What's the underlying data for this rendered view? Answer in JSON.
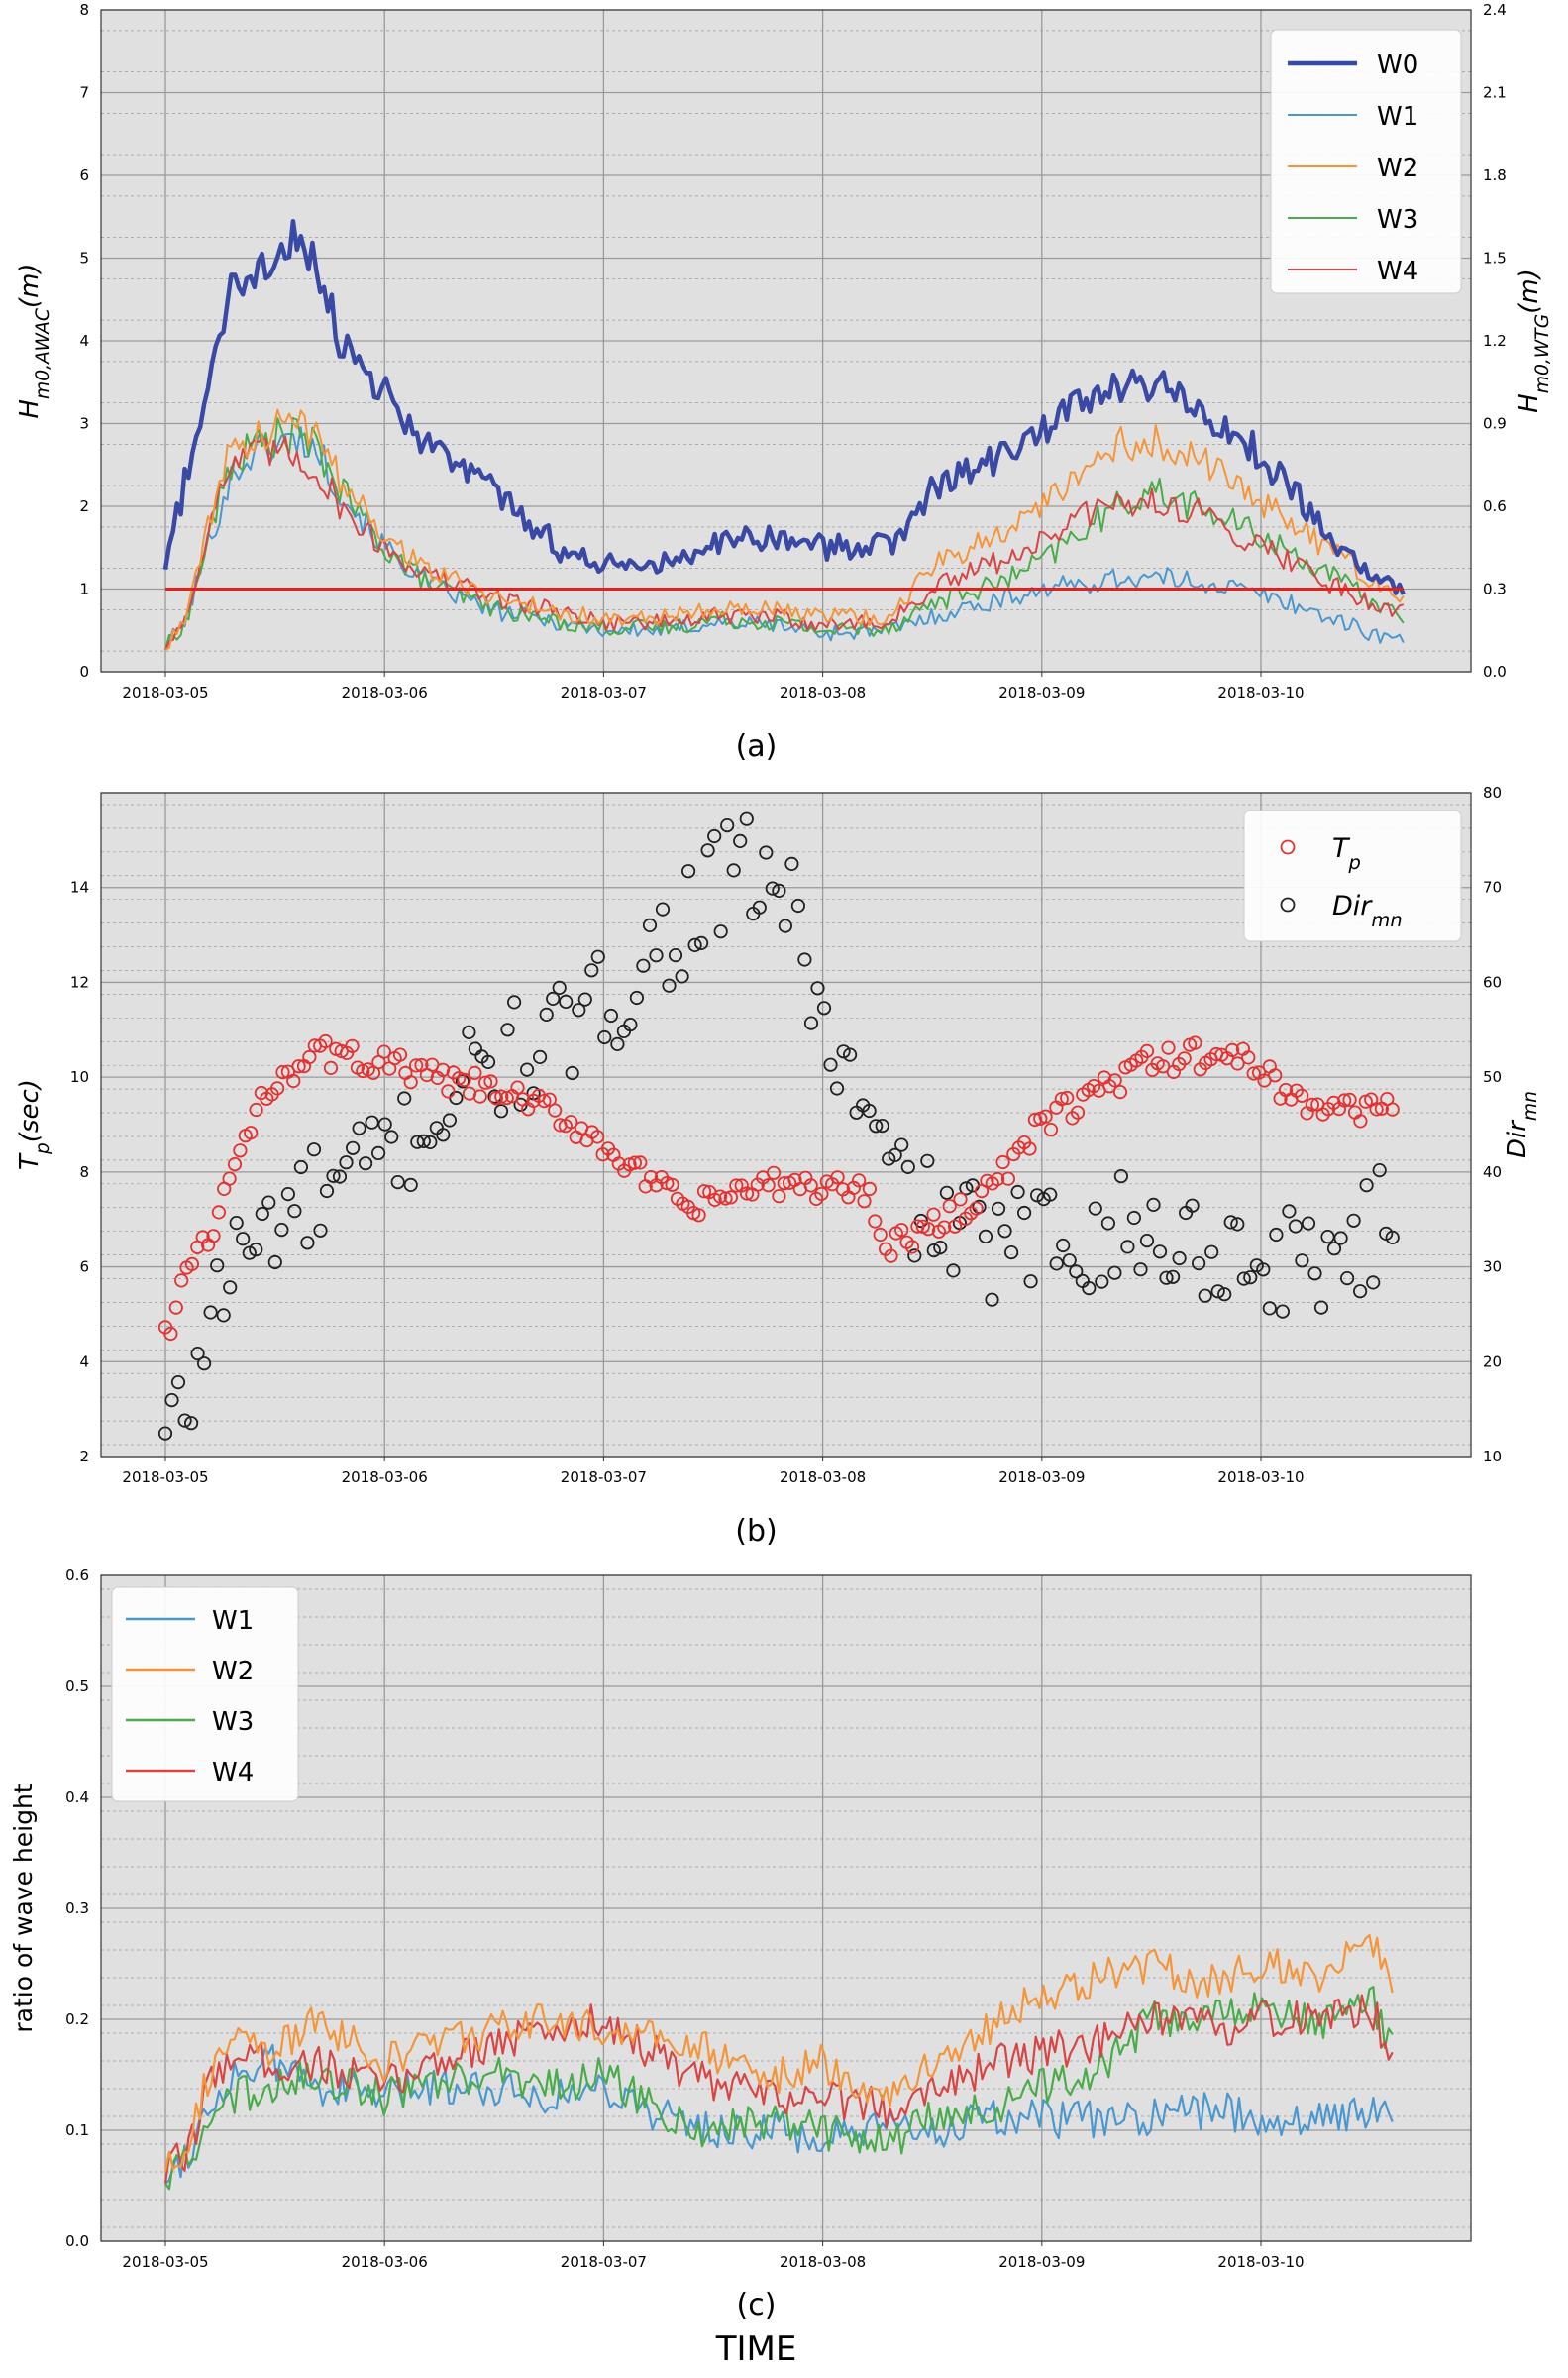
{
  "colors": {
    "W0": "#3a4aa4",
    "W1": "#4a98cf",
    "W2": "#f5953a",
    "W3": "#4aab4a",
    "W4": "#d84545",
    "Tp": "#e53030",
    "Dir": "#222222",
    "threshold": "#e0221e",
    "panel_bg": "#e0e0e0",
    "grid": "#9a9a9a"
  },
  "chart_data": [
    {
      "type": "line",
      "panel_label": "(a)",
      "ylabel_left": "H<sub>m0,AWAC</sub>(m)",
      "ylabel_right": "H<sub>m0,WTG</sub>(m)",
      "xlim": [
        "2018-03-05",
        "2018-03-10"
      ],
      "ylim_left": [
        0,
        8
      ],
      "ylim_right": [
        0,
        2.4
      ],
      "yticks_left": [
        "0",
        "1",
        "2",
        "3",
        "4",
        "5",
        "6",
        "7",
        "8"
      ],
      "yticks_right": [
        "0.0",
        "0.3",
        "0.6",
        "0.9",
        "1.2",
        "1.5",
        "1.8",
        "2.1",
        "2.4"
      ],
      "xticks": [
        "2018-03-05",
        "2018-03-06",
        "2018-03-07",
        "2018-03-08",
        "2018-03-09",
        "2018-03-10"
      ],
      "grid": true,
      "legend": "top-right",
      "x": [
        0.0,
        0.1,
        0.2,
        0.3,
        0.4,
        0.5,
        0.6,
        0.7,
        0.8,
        1.0,
        1.2,
        1.5,
        1.8,
        2.0,
        2.3,
        2.5,
        2.8,
        3.0,
        3.3,
        3.5,
        3.8,
        4.0,
        4.2,
        4.35,
        4.5,
        4.7,
        4.9,
        5.1,
        5.3,
        5.5,
        5.65
      ],
      "series": [
        {
          "name": "W0",
          "axis": "left",
          "values": [
            1.3,
            2.4,
            3.5,
            4.6,
            4.7,
            5.0,
            5.3,
            4.9,
            4.0,
            3.4,
            2.7,
            2.2,
            1.5,
            1.3,
            1.3,
            1.6,
            1.65,
            1.5,
            1.5,
            2.2,
            2.6,
            2.9,
            3.3,
            3.4,
            3.5,
            3.2,
            2.9,
            2.3,
            1.7,
            1.2,
            1.0
          ]
        },
        {
          "name": "W1",
          "axis": "right",
          "values": [
            0.09,
            0.2,
            0.48,
            0.7,
            0.8,
            0.82,
            0.85,
            0.8,
            0.65,
            0.45,
            0.32,
            0.22,
            0.18,
            0.15,
            0.15,
            0.18,
            0.17,
            0.14,
            0.15,
            0.2,
            0.26,
            0.3,
            0.32,
            0.34,
            0.34,
            0.33,
            0.3,
            0.26,
            0.2,
            0.14,
            0.11
          ]
        },
        {
          "name": "W2",
          "axis": "right",
          "values": [
            0.09,
            0.2,
            0.55,
            0.8,
            0.85,
            0.88,
            0.9,
            0.85,
            0.7,
            0.5,
            0.37,
            0.27,
            0.22,
            0.19,
            0.2,
            0.24,
            0.22,
            0.2,
            0.2,
            0.38,
            0.5,
            0.6,
            0.72,
            0.82,
            0.85,
            0.78,
            0.68,
            0.56,
            0.45,
            0.33,
            0.27
          ]
        },
        {
          "name": "W3",
          "axis": "right",
          "values": [
            0.09,
            0.19,
            0.5,
            0.75,
            0.82,
            0.85,
            0.86,
            0.8,
            0.66,
            0.45,
            0.32,
            0.23,
            0.18,
            0.16,
            0.16,
            0.19,
            0.18,
            0.15,
            0.16,
            0.25,
            0.32,
            0.4,
            0.52,
            0.6,
            0.66,
            0.6,
            0.53,
            0.45,
            0.36,
            0.26,
            0.2
          ]
        },
        {
          "name": "W4",
          "axis": "right",
          "values": [
            0.09,
            0.2,
            0.55,
            0.75,
            0.78,
            0.8,
            0.78,
            0.72,
            0.6,
            0.45,
            0.35,
            0.27,
            0.22,
            0.18,
            0.18,
            0.2,
            0.2,
            0.17,
            0.18,
            0.3,
            0.4,
            0.47,
            0.57,
            0.6,
            0.62,
            0.58,
            0.5,
            0.42,
            0.33,
            0.25,
            0.22
          ]
        }
      ],
      "reference_line": {
        "axis": "left",
        "value": 1.0
      }
    },
    {
      "type": "scatter",
      "panel_label": "(b)",
      "ylabel_left": "T<sub>p</sub>(sec)",
      "ylabel_right": "Dir<sub>mn</sub>",
      "xlim": [
        "2018-03-05",
        "2018-03-10"
      ],
      "ylim_left": [
        2,
        16
      ],
      "ylim_right": [
        10,
        80
      ],
      "yticks_left": [
        "2",
        "4",
        "6",
        "8",
        "10",
        "12",
        "14"
      ],
      "yticks_right": [
        "10",
        "20",
        "30",
        "40",
        "50",
        "60",
        "70",
        "80"
      ],
      "xticks": [
        "2018-03-05",
        "2018-03-06",
        "2018-03-07",
        "2018-03-08",
        "2018-03-09",
        "2018-03-10"
      ],
      "grid": true,
      "legend": "top-right",
      "series": [
        {
          "name": "T<sub>p</sub>",
          "axis": "left",
          "x": [
            0.0,
            0.1,
            0.2,
            0.3,
            0.5,
            0.7,
            1.0,
            1.2,
            1.5,
            1.8,
            2.0,
            2.2,
            2.4,
            2.6,
            2.8,
            3.0,
            3.2,
            3.3,
            3.5,
            3.8,
            4.0,
            4.2,
            4.5,
            4.8,
            5.0,
            5.2,
            5.4,
            5.6
          ],
          "values": [
            4.5,
            6.0,
            6.5,
            8.0,
            10.0,
            10.5,
            10.3,
            10.0,
            9.7,
            9.2,
            8.6,
            7.8,
            7.2,
            7.6,
            7.7,
            7.7,
            7.6,
            6.5,
            6.8,
            7.8,
            9.0,
            9.6,
            10.3,
            10.5,
            10.2,
            9.4,
            9.3,
            9.5
          ]
        },
        {
          "name": "Dir<sub>mn</sub>",
          "axis": "right",
          "x": [
            0.0,
            0.1,
            0.2,
            0.3,
            0.5,
            0.8,
            1.0,
            1.2,
            1.4,
            1.6,
            1.9,
            2.1,
            2.3,
            2.5,
            2.7,
            2.8,
            2.9,
            3.0,
            3.1,
            3.2,
            3.3,
            3.5,
            3.8,
            4.0,
            4.3,
            4.5,
            4.8,
            5.0,
            5.2,
            5.5,
            5.6
          ],
          "values": [
            12,
            15,
            25,
            30,
            35,
            38,
            42,
            45,
            50,
            52,
            55,
            60,
            65,
            70,
            72,
            70,
            65,
            55,
            50,
            45,
            40,
            35,
            32,
            33,
            34,
            33,
            32,
            30,
            31,
            33,
            36
          ]
        }
      ]
    },
    {
      "type": "line",
      "panel_label": "(c)",
      "xlabel": "TIME",
      "ylabel": "ratio of wave height",
      "xlim": [
        "2018-03-05",
        "2018-03-10"
      ],
      "ylim": [
        0,
        0.6
      ],
      "yticks": [
        "0.0",
        "0.1",
        "0.2",
        "0.3",
        "0.4",
        "0.5",
        "0.6"
      ],
      "xticks": [
        "2018-03-05",
        "2018-03-06",
        "2018-03-07",
        "2018-03-08",
        "2018-03-09",
        "2018-03-10"
      ],
      "grid": true,
      "legend": "top-left",
      "x": [
        0.0,
        0.1,
        0.2,
        0.3,
        0.5,
        0.7,
        1.0,
        1.2,
        1.5,
        1.8,
        2.0,
        2.3,
        2.5,
        2.8,
        3.0,
        3.3,
        3.5,
        3.8,
        4.0,
        4.3,
        4.5,
        4.8,
        5.0,
        5.3,
        5.5,
        5.6
      ],
      "series": [
        {
          "name": "W1",
          "values": [
            0.06,
            0.08,
            0.12,
            0.15,
            0.16,
            0.14,
            0.13,
            0.14,
            0.14,
            0.13,
            0.14,
            0.11,
            0.1,
            0.1,
            0.09,
            0.1,
            0.1,
            0.11,
            0.11,
            0.11,
            0.11,
            0.12,
            0.11,
            0.11,
            0.12,
            0.11
          ]
        },
        {
          "name": "W2",
          "values": [
            0.07,
            0.09,
            0.15,
            0.18,
            0.17,
            0.2,
            0.16,
            0.18,
            0.19,
            0.2,
            0.19,
            0.18,
            0.17,
            0.15,
            0.16,
            0.13,
            0.16,
            0.2,
            0.22,
            0.24,
            0.25,
            0.23,
            0.25,
            0.24,
            0.27,
            0.24
          ]
        },
        {
          "name": "W3",
          "values": [
            0.06,
            0.07,
            0.1,
            0.13,
            0.14,
            0.15,
            0.13,
            0.14,
            0.15,
            0.14,
            0.15,
            0.11,
            0.1,
            0.11,
            0.1,
            0.09,
            0.11,
            0.12,
            0.14,
            0.16,
            0.2,
            0.2,
            0.21,
            0.2,
            0.22,
            0.17
          ]
        },
        {
          "name": "W4",
          "values": [
            0.06,
            0.08,
            0.14,
            0.17,
            0.16,
            0.16,
            0.14,
            0.16,
            0.18,
            0.19,
            0.2,
            0.16,
            0.14,
            0.13,
            0.13,
            0.12,
            0.14,
            0.16,
            0.17,
            0.18,
            0.2,
            0.19,
            0.2,
            0.2,
            0.21,
            0.17
          ]
        }
      ]
    }
  ]
}
